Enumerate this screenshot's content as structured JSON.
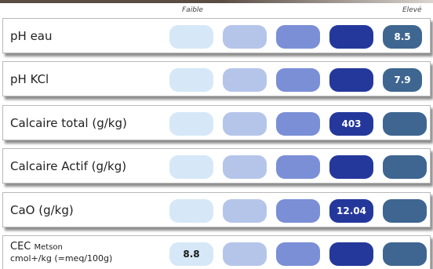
{
  "scale_labels": {
    "low": "Faible",
    "high": "Elevé"
  },
  "colors": {
    "level1": "#d6e8f7",
    "level2": "#b5c5ea",
    "level3": "#7b8fd6",
    "level4": "#24389c",
    "level5": "#3e6690"
  },
  "rows": [
    {
      "label": "pH eau",
      "value": "8.5",
      "level": 5
    },
    {
      "label": "pH KCl",
      "value": "7.9",
      "level": 5
    },
    {
      "label": "Calcaire total (g/kg)",
      "value": "403",
      "level": 4
    },
    {
      "label": "Calcaire Actif (g/kg)",
      "value": "",
      "level": null
    },
    {
      "label": "CaO (g/kg)",
      "value": "12.04",
      "level": 4
    },
    {
      "label_main": "CEC",
      "label_method": "Metson",
      "label_unit": "cmol+/kg (=meq/100g)",
      "value": "8.8",
      "level": 1
    }
  ]
}
